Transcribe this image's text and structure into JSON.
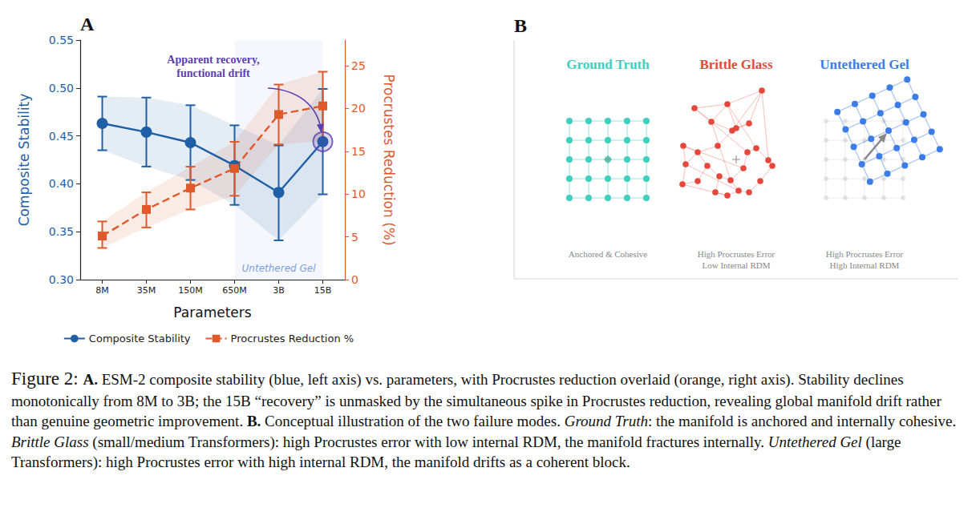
{
  "chart_data": {
    "type": "line",
    "panel": "A",
    "xlabel": "Parameters",
    "categories": [
      "8M",
      "35M",
      "150M",
      "650M",
      "3B",
      "15B"
    ],
    "ylabel": "Composite Stability",
    "y2label": "Procrustes Reduction (%)",
    "ylim": [
      0.3,
      0.55
    ],
    "yticks": [
      {
        "value": 0.3,
        "label": "0.30"
      },
      0.35,
      {
        "value": 0.4,
        "label": "0.40"
      },
      0.45,
      {
        "value": 0.5,
        "label": "0.50"
      },
      0.55
    ],
    "y2lim": [
      0,
      28
    ],
    "y2ticks": [
      0,
      5,
      10,
      15,
      20,
      25
    ],
    "grid": false,
    "legend": "bottom",
    "series": [
      {
        "name": "Composite Stability",
        "color": "#1f5fa6",
        "marker": "circle",
        "line_style": "solid",
        "values": [
          0.463,
          0.454,
          0.443,
          0.419,
          0.391,
          0.444
        ],
        "lower": [
          0.435,
          0.418,
          0.404,
          0.378,
          0.341,
          0.389
        ],
        "upper": [
          0.491,
          0.49,
          0.482,
          0.461,
          0.44,
          0.499
        ]
      },
      {
        "name": "Procrustes Reduction %",
        "color": "#e0592a",
        "marker": "square",
        "line_style": "dashed",
        "axis": "y2",
        "values": [
          5.1,
          8.2,
          10.7,
          13.0,
          19.3,
          20.3
        ],
        "lower": [
          3.7,
          6.1,
          8.2,
          9.8,
          15.8,
          16.2
        ],
        "upper": [
          6.8,
          10.2,
          13.2,
          16.1,
          22.8,
          24.3
        ]
      }
    ],
    "annotation": {
      "text": [
        "Apparent recovery,",
        "functional drift"
      ],
      "target": "15B",
      "color": "#5b3fb0"
    },
    "region": {
      "label": "Untethered Gel",
      "from": "650M",
      "to": "15B",
      "color": "#7b9de6"
    }
  },
  "diagram": {
    "panel": "B",
    "items": [
      {
        "title": "Ground Truth",
        "color": "#3ecfbf",
        "subtitle": [
          "Anchored & Cohesive"
        ]
      },
      {
        "title": "Brittle Glass",
        "color": "#e5483b",
        "subtitle": [
          "High Procrustes Error",
          "Low Internal RDM"
        ]
      },
      {
        "title": "Untethered Gel",
        "color": "#3b7ce8",
        "subtitle": [
          "High Procrustes Error",
          "High Internal RDM"
        ]
      }
    ]
  },
  "caption": {
    "label": "Figure 2:",
    "segments": [
      {
        "text": "A.",
        "style": "bold"
      },
      {
        "text": " ESM-2 composite stability (blue, left axis) vs. parameters, with Procrustes reduction overlaid (orange, right axis). Stability declines monotonically from 8M to 3B; the 15B “recovery” is unmasked by the simultaneous spike in Procrustes reduction, revealing global manifold drift rather than genuine geometric improvement. ",
        "style": "plain"
      },
      {
        "text": "B.",
        "style": "bold"
      },
      {
        "text": " Conceptual illustration of the two failure modes. ",
        "style": "plain"
      },
      {
        "text": "Ground Truth",
        "style": "italic"
      },
      {
        "text": ": the manifold is anchored and internally cohesive. ",
        "style": "plain"
      },
      {
        "text": "Brittle Glass",
        "style": "italic"
      },
      {
        "text": " (small/medium Transformers): high Procrustes error with low internal RDM, the manifold fractures internally. ",
        "style": "plain"
      },
      {
        "text": "Untethered Gel",
        "style": "italic"
      },
      {
        "text": " (large Transformers): high Procrustes error with high internal RDM, the manifold drifts as a coherent block.",
        "style": "plain"
      }
    ]
  }
}
